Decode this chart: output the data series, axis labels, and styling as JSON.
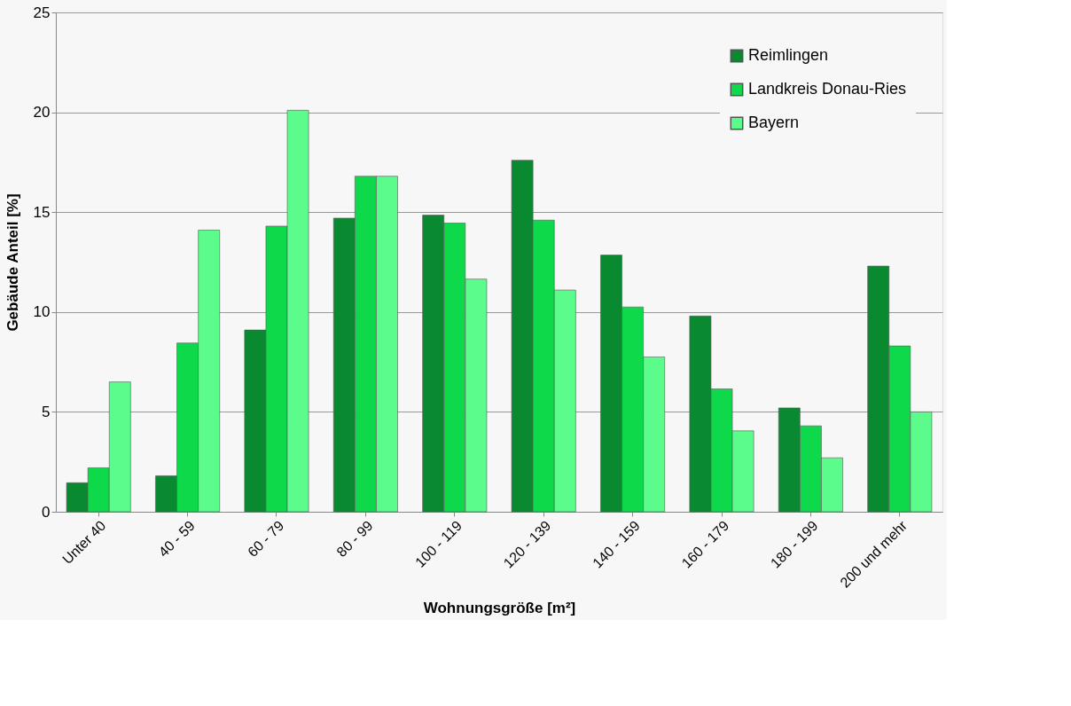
{
  "chart_data": {
    "type": "bar",
    "xlabel": "Wohnungsgröße [m²]",
    "ylabel": "Gebäude Anteil [%]",
    "categories": [
      "Unter 40",
      "40 - 59",
      "60 - 79",
      "80 - 99",
      "100 - 119",
      "120 - 139",
      "140 - 159",
      "160 - 179",
      "180 - 199",
      "200 und mehr"
    ],
    "series": [
      {
        "name": "Reimlingen",
        "color": "#0a8a30",
        "values": [
          1.45,
          1.8,
          9.1,
          14.7,
          14.85,
          17.6,
          12.85,
          9.8,
          5.2,
          12.3
        ]
      },
      {
        "name": "Landkreis Donau-Ries",
        "color": "#0ed94a",
        "values": [
          2.2,
          8.45,
          14.3,
          16.8,
          14.45,
          14.6,
          10.25,
          6.15,
          4.3,
          8.3
        ]
      },
      {
        "name": "Bayern",
        "color": "#5cfc8c",
        "values": [
          6.5,
          14.1,
          20.1,
          16.8,
          11.65,
          11.1,
          7.75,
          4.05,
          2.7,
          5.0
        ]
      }
    ],
    "ylim": [
      0,
      25
    ],
    "yticks": [
      0,
      5,
      10,
      15,
      20,
      25
    ],
    "grid": "y",
    "legend": "top right"
  }
}
